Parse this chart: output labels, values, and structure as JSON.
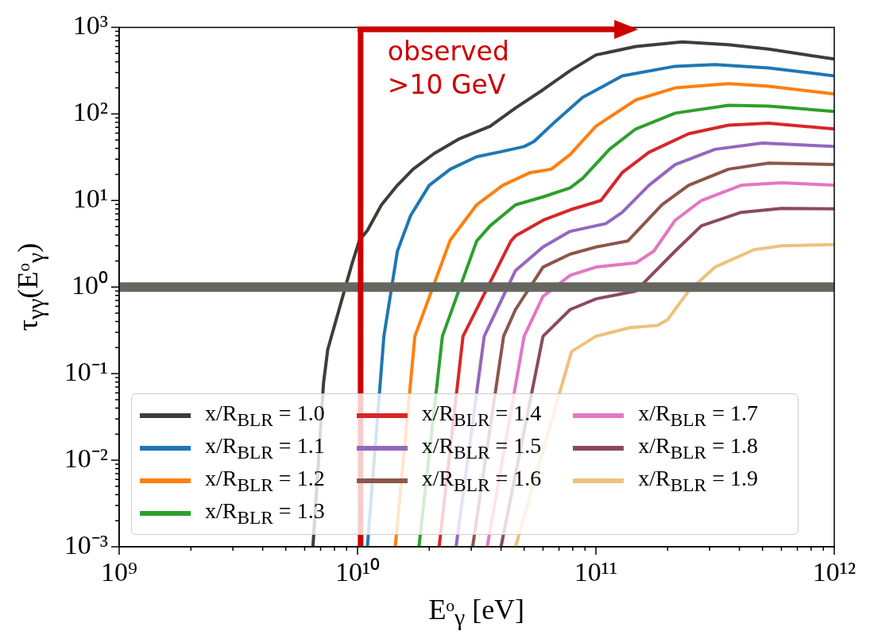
{
  "chart_data": {
    "type": "line",
    "xlabel": "Eᵒ$_{γ}$ [eV]",
    "ylabel": "τ$_{γγ}$(Eᵒ$_{γ}$)",
    "log": "xy",
    "marker": "none",
    "legend": "bottom",
    "xlim": [
      1000000000.0,
      1000000000000.0
    ],
    "ylim": [
      0.001,
      1000
    ],
    "xticks": [
      {
        "value": 1000000000.0,
        "label": "10⁹"
      },
      {
        "value": 2000000000.0,
        "label": null
      },
      {
        "value": 3000000000.0,
        "label": null
      },
      {
        "value": 4000000000.0,
        "label": null
      },
      {
        "value": 5000000000.0,
        "label": null
      },
      {
        "value": 6000000000.0,
        "label": null
      },
      {
        "value": 7000000000.0,
        "label": null
      },
      {
        "value": 8000000000.0,
        "label": null
      },
      {
        "value": 9000000000.0,
        "label": null
      },
      {
        "value": 10000000000.0,
        "label": "10¹⁰"
      },
      {
        "value": 20000000000.0,
        "label": null
      },
      {
        "value": 30000000000.0,
        "label": null
      },
      {
        "value": 40000000000.0,
        "label": null
      },
      {
        "value": 50000000000.0,
        "label": null
      },
      {
        "value": 60000000000.0,
        "label": null
      },
      {
        "value": 70000000000.0,
        "label": null
      },
      {
        "value": 80000000000.0,
        "label": null
      },
      {
        "value": 90000000000.0,
        "label": null
      },
      {
        "value": 100000000000.0,
        "label": "10¹¹"
      },
      {
        "value": 200000000000.0,
        "label": null
      },
      {
        "value": 300000000000.0,
        "label": null
      },
      {
        "value": 400000000000.0,
        "label": null
      },
      {
        "value": 500000000000.0,
        "label": null
      },
      {
        "value": 600000000000.0,
        "label": null
      },
      {
        "value": 700000000000.0,
        "label": null
      },
      {
        "value": 800000000000.0,
        "label": null
      },
      {
        "value": 900000000000.0,
        "label": null
      },
      {
        "value": 1000000000000.0,
        "label": "10¹²"
      }
    ],
    "yticks": [
      {
        "value": 0.001,
        "label": "10⁻³"
      },
      {
        "value": 0.002,
        "label": null
      },
      {
        "value": 0.003,
        "label": null
      },
      {
        "value": 0.004,
        "label": null
      },
      {
        "value": 0.005,
        "label": null
      },
      {
        "value": 0.006,
        "label": null
      },
      {
        "value": 0.007,
        "label": null
      },
      {
        "value": 0.008,
        "label": null
      },
      {
        "value": 0.009,
        "label": null
      },
      {
        "value": 0.01,
        "label": "10⁻²"
      },
      {
        "value": 0.02,
        "label": null
      },
      {
        "value": 0.03,
        "label": null
      },
      {
        "value": 0.04,
        "label": null
      },
      {
        "value": 0.05,
        "label": null
      },
      {
        "value": 0.06,
        "label": null
      },
      {
        "value": 0.07,
        "label": null
      },
      {
        "value": 0.08,
        "label": null
      },
      {
        "value": 0.09,
        "label": null
      },
      {
        "value": 0.1,
        "label": "10⁻¹"
      },
      {
        "value": 0.2,
        "label": null
      },
      {
        "value": 0.3,
        "label": null
      },
      {
        "value": 0.4,
        "label": null
      },
      {
        "value": 0.5,
        "label": null
      },
      {
        "value": 0.6,
        "label": null
      },
      {
        "value": 0.7,
        "label": null
      },
      {
        "value": 0.8,
        "label": null
      },
      {
        "value": 0.9,
        "label": null
      },
      {
        "value": 1,
        "label": "10⁰"
      },
      {
        "value": 2,
        "label": null
      },
      {
        "value": 3,
        "label": null
      },
      {
        "value": 4,
        "label": null
      },
      {
        "value": 5,
        "label": null
      },
      {
        "value": 6,
        "label": null
      },
      {
        "value": 7,
        "label": null
      },
      {
        "value": 8,
        "label": null
      },
      {
        "value": 9,
        "label": null
      },
      {
        "value": 10,
        "label": "10¹"
      },
      {
        "value": 20,
        "label": null
      },
      {
        "value": 30,
        "label": null
      },
      {
        "value": 40,
        "label": null
      },
      {
        "value": 50,
        "label": null
      },
      {
        "value": 60,
        "label": null
      },
      {
        "value": 70,
        "label": null
      },
      {
        "value": 80,
        "label": null
      },
      {
        "value": 90,
        "label": null
      },
      {
        "value": 100,
        "label": "10²"
      },
      {
        "value": 200,
        "label": null
      },
      {
        "value": 300,
        "label": null
      },
      {
        "value": 400,
        "label": null
      },
      {
        "value": 500,
        "label": null
      },
      {
        "value": 600,
        "label": null
      },
      {
        "value": 700,
        "label": null
      },
      {
        "value": 800,
        "label": null
      },
      {
        "value": 900,
        "label": null
      },
      {
        "value": 1000,
        "label": "10³"
      }
    ],
    "ref_lines": [
      {
        "axis": "y",
        "value": 1,
        "color": "#666661"
      },
      {
        "axis": "x",
        "value": 10300000000.0,
        "color": "#cc0000",
        "label": "observed >10 GeV"
      }
    ],
    "series": [
      {
        "name": "x/R$_{BLR}$ = 1.0",
        "color": "#403c38",
        "x": [
          6500000000.0,
          7200000000.0,
          7500000000.0,
          9500000000.0,
          10200000000.0,
          11000000000.0,
          12600000000.0,
          14700000000.0,
          17100000000.0,
          21000000000.0,
          26500000000.0,
          36000000000.0,
          46000000000.0,
          60000000000.0,
          78000000000.0,
          100000000000.0,
          147000000000.0,
          230000000000.0,
          360000000000.0,
          530000000000.0,
          1000000000000.0
        ],
        "values": [
          0.001,
          0.078,
          0.19,
          1.9,
          3.5,
          4.5,
          8.9,
          15,
          23,
          35,
          51,
          72,
          117,
          190,
          316,
          480,
          600,
          680,
          630,
          560,
          430
        ]
      },
      {
        "name": "x/R$_{BLR}$ = 1.1",
        "color": "#1f77b4",
        "x": [
          11000000000.0,
          12900000000.0,
          14700000000.0,
          16700000000.0,
          20000000000.0,
          24500000000.0,
          31600000000.0,
          40700000000.0,
          50000000000.0,
          55000000000.0,
          68000000000.0,
          88000000000.0,
          129000000000.0,
          215000000000.0,
          316000000000.0,
          530000000000.0,
          1000000000000.0
        ],
        "values": [
          0.001,
          0.27,
          2.6,
          6.7,
          15,
          23,
          32,
          37,
          42,
          48,
          83,
          155,
          275,
          355,
          372,
          340,
          275
        ]
      },
      {
        "name": "x/R$_{BLR}$ = 1.2",
        "color": "#ff7f0e",
        "x": [
          14400000000.0,
          17400000000.0,
          24500000000.0,
          31600000000.0,
          40700000000.0,
          53000000000.0,
          65000000000.0,
          78000000000.0,
          100000000000.0,
          147000000000.0,
          215000000000.0,
          360000000000.0,
          530000000000.0,
          1000000000000.0
        ],
        "values": [
          0.001,
          0.27,
          3.5,
          8.9,
          15,
          21,
          23,
          34,
          72,
          145,
          200,
          224,
          209,
          170
        ]
      },
      {
        "name": "x/R$_{BLR}$ = 1.3",
        "color": "#2ca02c",
        "x": [
          18100000000.0,
          22700000000.0,
          31600000000.0,
          36000000000.0,
          46000000000.0,
          60000000000.0,
          78000000000.0,
          88000000000.0,
          114000000000.0,
          147000000000.0,
          215000000000.0,
          360000000000.0,
          530000000000.0,
          1000000000000.0
        ],
        "values": [
          0.001,
          0.27,
          3.4,
          5.1,
          8.9,
          11,
          14,
          18,
          39,
          67,
          102,
          126,
          123,
          107
        ]
      },
      {
        "name": "x/R$_{BLR}$ = 1.4",
        "color": "#d62728",
        "x": [
          22000000000.0,
          27700000000.0,
          44000000000.0,
          46000000000.0,
          60000000000.0,
          78000000000.0,
          105000000000.0,
          129000000000.0,
          167000000000.0,
          245000000000.0,
          360000000000.0,
          530000000000.0,
          1000000000000.0
        ],
        "values": [
          0.001,
          0.27,
          3.4,
          3.9,
          5.9,
          7.8,
          10,
          21,
          36,
          59,
          74,
          78,
          67
        ]
      },
      {
        "name": "x/R$_{BLR}$ = 1.5",
        "color": "#9467bd",
        "x": [
          25900000000.0,
          34000000000.0,
          46000000000.0,
          60000000000.0,
          78000000000.0,
          110000000000.0,
          129000000000.0,
          167000000000.0,
          215000000000.0,
          316000000000.0,
          500000000000.0,
          1000000000000.0
        ],
        "values": [
          0.001,
          0.27,
          1.55,
          2.9,
          4.4,
          5.4,
          7.3,
          15,
          26,
          39,
          46,
          42
        ]
      },
      {
        "name": "x/R$_{BLR}$ = 1.6",
        "color": "#8c564b",
        "x": [
          30400000000.0,
          41000000000.0,
          46000000000.0,
          60000000000.0,
          78000000000.0,
          100000000000.0,
          136000000000.0,
          189000000000.0,
          245000000000.0,
          360000000000.0,
          530000000000.0,
          1000000000000.0
        ],
        "values": [
          0.001,
          0.27,
          0.55,
          1.7,
          2.4,
          2.9,
          3.4,
          8.9,
          15,
          23,
          27,
          26
        ]
      },
      {
        "name": "x/R$_{BLR}$ = 1.7",
        "color": "#e377c2",
        "x": [
          35000000000.0,
          50000000000.0,
          60000000000.0,
          78000000000.0,
          100000000000.0,
          147000000000.0,
          175000000000.0,
          215000000000.0,
          277000000000.0,
          407000000000.0,
          600000000000.0,
          1000000000000.0
        ],
        "values": [
          0.001,
          0.27,
          0.78,
          1.37,
          1.7,
          1.9,
          2.6,
          5.9,
          10,
          15,
          16,
          15
        ]
      },
      {
        "name": "x/R$_{BLR}$ = 1.8",
        "color": "#8a4a60",
        "x": [
          40000000000.0,
          60000000000.0,
          78000000000.0,
          100000000000.0,
          147000000000.0,
          215000000000.0,
          277000000000.0,
          407000000000.0,
          600000000000.0,
          1000000000000.0
        ],
        "values": [
          0.001,
          0.27,
          0.55,
          0.73,
          0.9,
          2.6,
          5.1,
          7.3,
          8.1,
          8.0
        ]
      },
      {
        "name": "x/R$_{BLR}$ = 1.9",
        "color": "#edc27c",
        "x": [
          46000000000.0,
          79000000000.0,
          100000000000.0,
          139000000000.0,
          181000000000.0,
          200000000000.0,
          245000000000.0,
          316000000000.0,
          460000000000.0,
          600000000000.0,
          1000000000000.0
        ],
        "values": [
          0.001,
          0.18,
          0.27,
          0.34,
          0.36,
          0.42,
          0.9,
          1.7,
          2.7,
          3.0,
          3.1
        ]
      }
    ]
  }
}
